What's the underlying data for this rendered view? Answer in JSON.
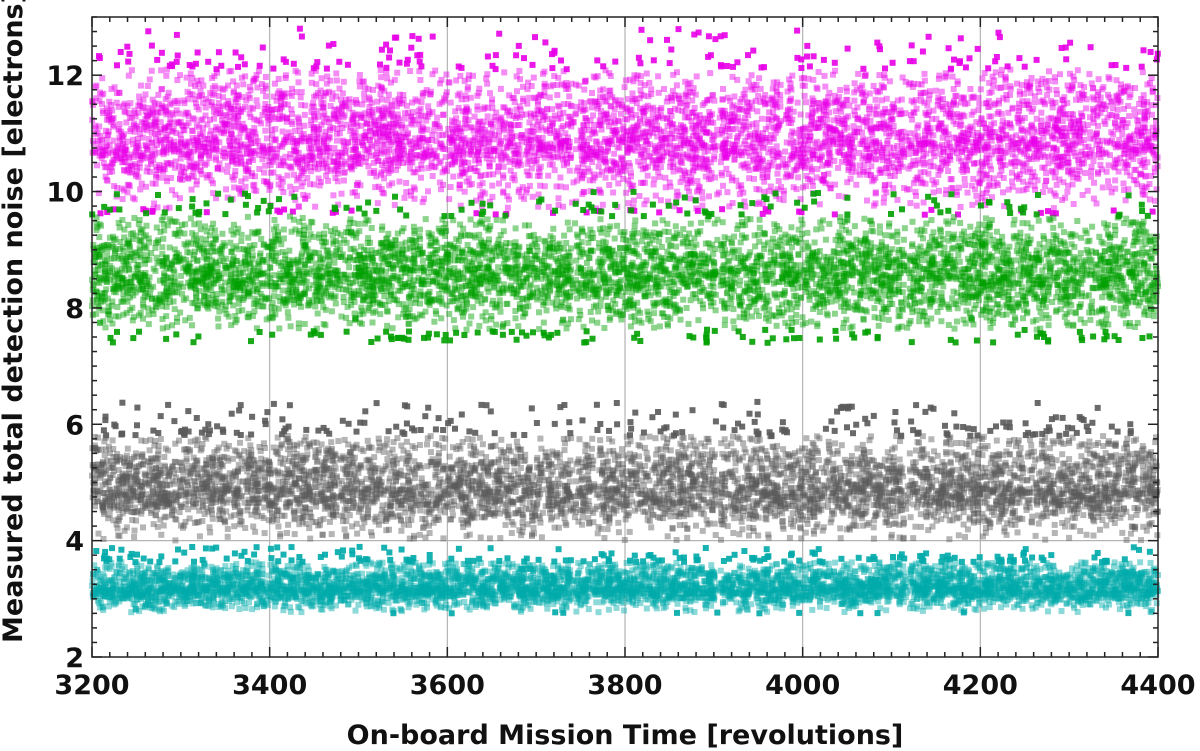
{
  "chart_data": {
    "type": "scatter",
    "xlabel": "On-board Mission Time [revolutions]",
    "ylabel": "Measured total detection noise [electrons]",
    "xlim": [
      3200,
      4400
    ],
    "ylim": [
      2,
      13
    ],
    "x_ticks": [
      3200,
      3400,
      3600,
      3800,
      4000,
      4200,
      4400
    ],
    "y_ticks": [
      2,
      4,
      6,
      8,
      10,
      12
    ],
    "x_tick_labels": [
      "3200",
      "3400",
      "3600",
      "3800",
      "4000",
      "4200",
      "4400"
    ],
    "y_tick_labels": [
      "2",
      "4",
      "6",
      "8",
      "10",
      "12"
    ],
    "grid": "vertical lines at major x ticks; horizontal line at y=4",
    "legend": "none",
    "data_gaps_x": [
      3742,
      3905,
      4117
    ],
    "series": [
      {
        "color": "#e800e8",
        "center": 10.9,
        "min": 9.6,
        "max": 12.8,
        "x_range": [
          3200,
          4400
        ]
      },
      {
        "color": "#00a000",
        "center": 8.6,
        "min": 7.4,
        "max": 10.0,
        "x_range": [
          3200,
          4400
        ]
      },
      {
        "color": "#5a5a5a",
        "center": 4.9,
        "min": 4.0,
        "max": 6.4,
        "x_range": [
          3200,
          4400
        ]
      },
      {
        "color": "#00aaaa",
        "center": 3.2,
        "min": 2.75,
        "max": 3.9,
        "x_range": [
          3200,
          4400
        ]
      }
    ]
  }
}
